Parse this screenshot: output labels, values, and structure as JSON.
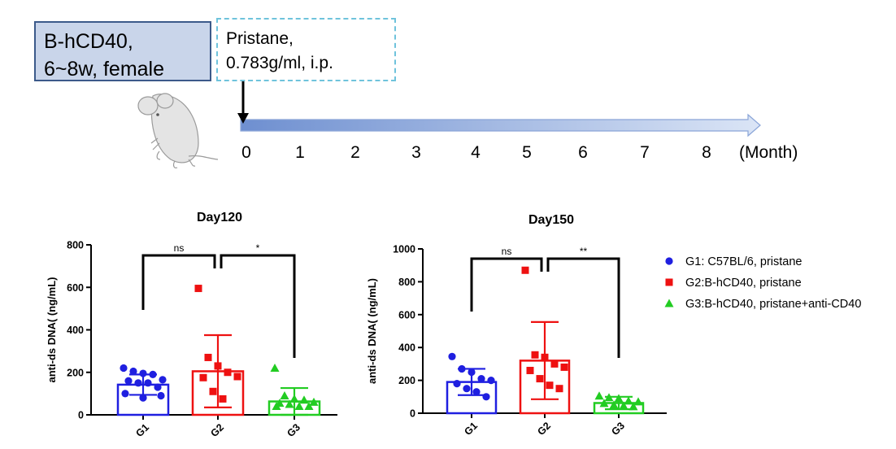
{
  "timeline": {
    "box1_lines": [
      "B-hCD40,",
      "6~8w, female"
    ],
    "box2_lines": [
      "Pristane,",
      "0.783g/ml, i.p."
    ],
    "ticks": [
      "0",
      "1",
      "2",
      "3",
      "4",
      "5",
      "6",
      "7",
      "8"
    ],
    "unit_label": "(Month)",
    "icon": "mouse-icon",
    "colors": {
      "box1_fill": "#c9d5ea",
      "box1_border": "#3c5a8a",
      "box2_border": "#6fc3dc",
      "arrow": "#8aa5d8"
    }
  },
  "legend": [
    {
      "label": "G1: C57BL/6, pristane",
      "color": "#1f1fe0",
      "marker": "circle"
    },
    {
      "label": "G2:B-hCD40, pristane",
      "color": "#ee1111",
      "marker": "square"
    },
    {
      "label": "G3:B-hCD40, pristane+anti-CD40",
      "color": "#22cc22",
      "marker": "triangle"
    }
  ],
  "chart_data": [
    {
      "type": "bar",
      "title": "Day120",
      "ylabel": "anti-ds DNA( (ng/mL)",
      "xlabel": "",
      "ylim": [
        0,
        800
      ],
      "yticks": [
        0,
        200,
        400,
        600,
        800
      ],
      "categories": [
        "G1",
        "G2",
        "G3"
      ],
      "series": [
        {
          "values": [
            142,
            205,
            63
          ],
          "errors": [
            48,
            170,
            63
          ],
          "points": [
            [
              220,
              205,
              195,
              190,
              165,
              160,
              150,
              150,
              130,
              100,
              90,
              80
            ],
            [
              595,
              270,
              230,
              200,
              180,
              175,
              110,
              75
            ],
            [
              220,
              90,
              75,
              70,
              60,
              55,
              50,
              40,
              40,
              40
            ]
          ]
        }
      ],
      "significance": [
        {
          "from": "G1",
          "to": "G2",
          "label": "ns"
        },
        {
          "from": "G2",
          "to": "G3",
          "label": "*"
        }
      ],
      "grid": false
    },
    {
      "type": "bar",
      "title": "Day150",
      "ylabel": "anti-ds DNA( (ng/mL)",
      "xlabel": "",
      "ylim": [
        0,
        1000
      ],
      "yticks": [
        0,
        200,
        400,
        600,
        800,
        1000
      ],
      "categories": [
        "G1",
        "G2",
        "G3"
      ],
      "series": [
        {
          "values": [
            190,
            320,
            62
          ],
          "errors": [
            80,
            235,
            38
          ],
          "points": [
            [
              345,
              270,
              250,
              210,
              200,
              180,
              150,
              130,
              100
            ],
            [
              870,
              355,
              340,
              300,
              280,
              260,
              210,
              170,
              150
            ],
            [
              105,
              95,
              90,
              75,
              70,
              60,
              50,
              45,
              40
            ]
          ]
        }
      ],
      "significance": [
        {
          "from": "G1",
          "to": "G2",
          "label": "ns"
        },
        {
          "from": "G2",
          "to": "G3",
          "label": "**"
        }
      ],
      "grid": false
    }
  ]
}
